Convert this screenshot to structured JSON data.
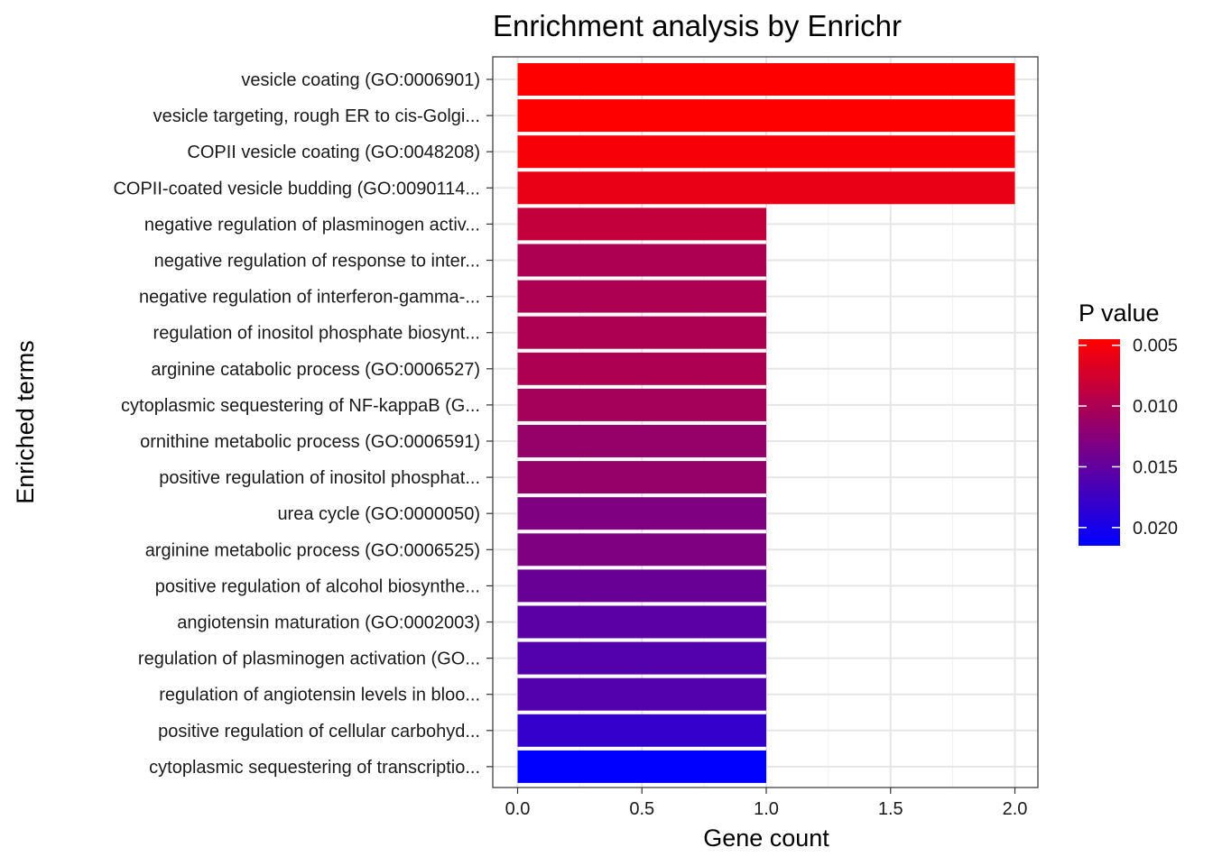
{
  "chart_data": {
    "type": "bar",
    "orientation": "horizontal",
    "title": "Enrichment analysis by Enrichr",
    "xlabel": "Gene count",
    "ylabel": "Enriched terms",
    "xlim": [
      0,
      2.05
    ],
    "x_ticks": [
      "0.0",
      "0.5",
      "1.0",
      "1.5",
      "2.0"
    ],
    "x_tick_values": [
      0,
      0.5,
      1.0,
      1.5,
      2.0
    ],
    "grid": true,
    "categories": [
      "vesicle coating (GO:0006901)",
      "vesicle targeting, rough ER to cis-Golgi...",
      "COPII vesicle coating (GO:0048208)",
      "COPII-coated vesicle budding (GO:0090114...",
      "negative regulation of plasminogen activ...",
      "negative regulation of response to inter...",
      "negative regulation of interferon-gamma-...",
      "regulation of inositol phosphate biosynt...",
      "arginine catabolic process (GO:0006527)",
      "cytoplasmic sequestering of NF-kappaB (G...",
      "ornithine metabolic process (GO:0006591)",
      "positive regulation of inositol phosphat...",
      "urea cycle (GO:0000050)",
      "arginine metabolic process (GO:0006525)",
      "positive regulation of alcohol biosynthe...",
      "angiotensin maturation (GO:0002003)",
      "regulation of plasminogen activation (GO...",
      "regulation of angiotensin levels in bloo...",
      "positive regulation of cellular carbohyd...",
      "cytoplasmic sequestering of transcriptio..."
    ],
    "values": [
      2,
      2,
      2,
      2,
      1,
      1,
      1,
      1,
      1,
      1,
      1,
      1,
      1,
      1,
      1,
      1,
      1,
      1,
      1,
      1
    ],
    "p_values": [
      0.0045,
      0.0045,
      0.005,
      0.006,
      0.0085,
      0.01,
      0.01,
      0.01,
      0.01,
      0.0105,
      0.0115,
      0.0115,
      0.013,
      0.013,
      0.0145,
      0.0155,
      0.016,
      0.016,
      0.018,
      0.0215
    ],
    "legend": {
      "title": "P value",
      "position": "right",
      "ticks": [
        "0.005",
        "0.010",
        "0.015",
        "0.020"
      ],
      "tick_values": [
        0.005,
        0.01,
        0.015,
        0.02
      ],
      "range": [
        0.0045,
        0.0215
      ],
      "color_low": "#FF0000",
      "color_high": "#0000FF"
    }
  }
}
